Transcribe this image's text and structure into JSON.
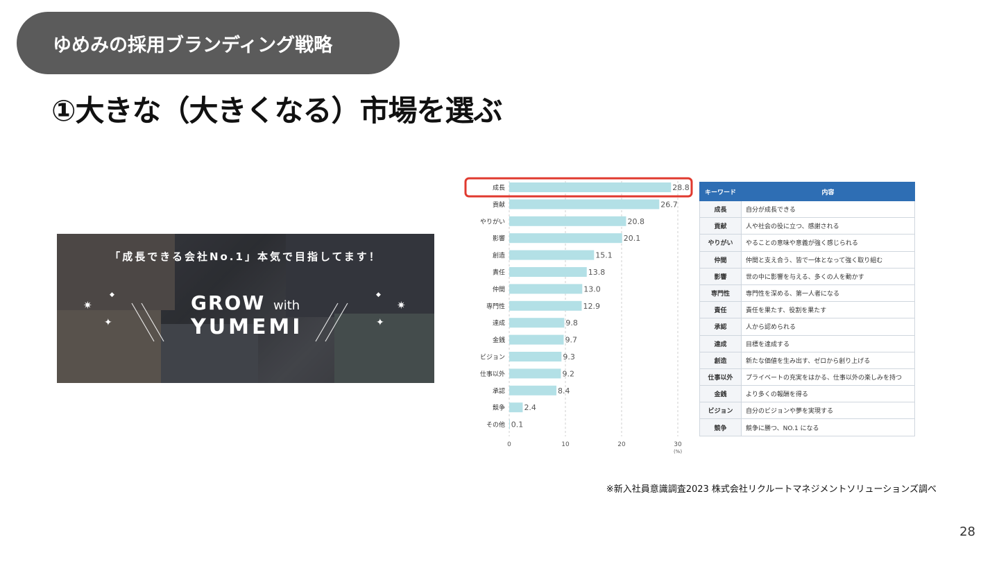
{
  "header": {
    "section_title": "ゆめみの採用ブランディング戦略"
  },
  "slide": {
    "title": "①大きな（大きくなる）市場を選ぶ"
  },
  "banner": {
    "tagline": "「成長できる会社No.1」本気で目指してます！",
    "logo_line1": "GROW",
    "logo_with": "with",
    "logo_line2": "YUMEMI"
  },
  "chart_data": {
    "type": "bar",
    "orientation": "horizontal",
    "categories": [
      "成長",
      "貢献",
      "やりがい",
      "影響",
      "創造",
      "責任",
      "仲間",
      "専門性",
      "達成",
      "金銭",
      "ビジョン",
      "仕事以外",
      "承認",
      "競争",
      "その他"
    ],
    "values": [
      28.8,
      26.7,
      20.8,
      20.1,
      15.1,
      13.8,
      13.0,
      12.9,
      9.8,
      9.7,
      9.3,
      9.2,
      8.4,
      2.4,
      0.1
    ],
    "value_labels": [
      "28.8",
      "26.7",
      "20.8",
      "20.1",
      "15.1",
      "13.8",
      "13.0",
      "12.9",
      "9.8",
      "9.7",
      "9.3",
      "9.2",
      "8.4",
      "2.4",
      "0.1"
    ],
    "xlim": [
      0,
      30
    ],
    "xticks": [
      "0",
      "10",
      "20",
      "30"
    ],
    "unit_label": "(%)",
    "highlight_index": 0,
    "bar_color": "#b3e0e6",
    "highlight_color": "#e03a2f",
    "grid": "dashed vertical"
  },
  "keyword_table": {
    "headers": [
      "キーワード",
      "内容"
    ],
    "rows": [
      [
        "成長",
        "自分が成長できる"
      ],
      [
        "貢献",
        "人や社会の役に立つ、感謝される"
      ],
      [
        "やりがい",
        "やることの意味や意義が強く感じられる"
      ],
      [
        "仲間",
        "仲間と支え合う、皆で一体となって強く取り組む"
      ],
      [
        "影響",
        "世の中に影響を与える、多くの人を動かす"
      ],
      [
        "専門性",
        "専門性を深める、第一人者になる"
      ],
      [
        "責任",
        "責任を果たす、役割を果たす"
      ],
      [
        "承認",
        "人から認められる"
      ],
      [
        "達成",
        "目標を達成する"
      ],
      [
        "創造",
        "新たな価値を生み出す、ゼロから創り上げる"
      ],
      [
        "仕事以外",
        "プライベートの充実をはかる、仕事以外の楽しみを持つ"
      ],
      [
        "金銭",
        "より多くの報酬を得る"
      ],
      [
        "ビジョン",
        "自分のビジョンや夢を実現する"
      ],
      [
        "競争",
        "競争に勝つ、NO.1 になる"
      ]
    ],
    "header_color": "#2e6eb4"
  },
  "footer": {
    "source": "※新入社員意識調査2023 株式会社リクルートマネジメントソリューションズ調べ",
    "page_number": "28"
  }
}
